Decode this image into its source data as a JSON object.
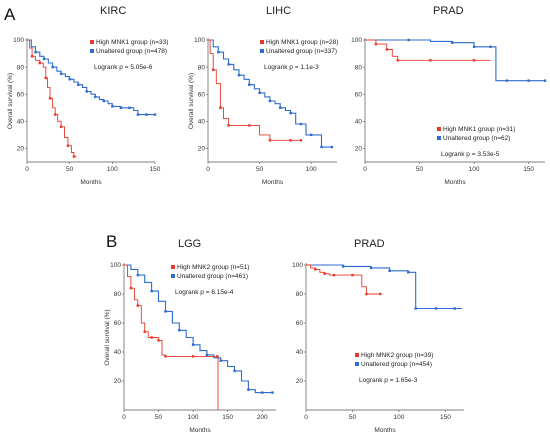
{
  "panel_labels": [
    "A",
    "B"
  ],
  "legend": {
    "high_mnk1": "High MNK1 group",
    "high_mnk2": "High MNK2 group",
    "unaltered": "Unaltered group"
  },
  "colors": {
    "high": "#e8382a",
    "unaltered": "#2d6bd0",
    "unaltered_tail": "#7fb1e6"
  },
  "chart_data": [
    {
      "type": "line",
      "title": "KIRC",
      "xlabel": "Months",
      "ylabel": "Overall survival  (%)",
      "xlim": [
        0,
        150
      ],
      "ylim": [
        10,
        100
      ],
      "xticks": [
        0,
        50,
        100,
        150
      ],
      "yticks": [
        20,
        40,
        60,
        80,
        100
      ],
      "legend_position": "top-right",
      "logrank": "Logrank  p = 5.05e-6",
      "series": [
        {
          "name": "High MNK1 group (n=33)",
          "group": "high",
          "x": [
            0,
            3,
            6,
            10,
            15,
            19,
            22,
            24,
            27,
            30,
            33,
            36,
            40,
            44,
            48,
            52,
            55,
            58
          ],
          "y": [
            100,
            94,
            88,
            85,
            83,
            80,
            72,
            65,
            57,
            50,
            45,
            40,
            36,
            28,
            22,
            17,
            14,
            14
          ]
        },
        {
          "name": "Unaltered group (n=478)",
          "group": "unaltered",
          "x": [
            0,
            5,
            10,
            15,
            20,
            25,
            30,
            35,
            40,
            45,
            50,
            55,
            60,
            65,
            70,
            75,
            80,
            85,
            90,
            95,
            100,
            105,
            110,
            115,
            120,
            125,
            130,
            135,
            140,
            145,
            150
          ],
          "y": [
            100,
            95,
            91,
            88,
            86,
            83,
            80,
            77,
            75,
            73,
            71,
            69,
            67,
            65,
            62,
            60,
            58,
            56,
            55,
            53,
            51,
            51,
            50,
            50,
            50,
            48,
            45,
            45,
            45,
            45,
            45
          ]
        }
      ]
    },
    {
      "type": "line",
      "title": "LIHC",
      "xlabel": "Months",
      "ylabel": "Overall survival  (%)",
      "xlim": [
        0,
        125
      ],
      "ylim": [
        10,
        100
      ],
      "xticks": [
        0,
        50,
        100
      ],
      "yticks": [
        20,
        40,
        60,
        80,
        100
      ],
      "legend_position": "top-right",
      "logrank": "Logrank  p = 1.1e-3",
      "series": [
        {
          "name": "High MNK1 group (n=28)",
          "group": "high",
          "x": [
            0,
            2,
            5,
            8,
            12,
            15,
            20,
            30,
            40,
            50,
            60,
            70,
            80,
            85,
            90
          ],
          "y": [
            100,
            90,
            78,
            68,
            50,
            42,
            37,
            37,
            37,
            30,
            26,
            26,
            26,
            26,
            26
          ]
        },
        {
          "name": "Unaltered group (n=337)",
          "group": "unaltered",
          "x": [
            0,
            5,
            10,
            15,
            20,
            25,
            30,
            35,
            40,
            45,
            50,
            55,
            60,
            65,
            70,
            75,
            80,
            85,
            90,
            95,
            100,
            105,
            110,
            115,
            120
          ],
          "y": [
            100,
            95,
            91,
            86,
            82,
            78,
            74,
            71,
            67,
            64,
            61,
            58,
            55,
            53,
            50,
            48,
            46,
            38,
            38,
            30,
            30,
            30,
            21,
            21,
            21
          ]
        }
      ]
    },
    {
      "type": "line",
      "title": "PRAD",
      "xlabel": "Months",
      "ylabel": "",
      "xlim": [
        0,
        165
      ],
      "ylim": [
        10,
        100
      ],
      "xticks": [
        0,
        50,
        100,
        150
      ],
      "yticks": [
        20,
        40,
        60,
        80,
        100
      ],
      "legend_position": "bottom-right",
      "logrank": "Logrank  p = 3.53e-5",
      "series": [
        {
          "name": "High MNK1 group (n=31)",
          "group": "high",
          "x": [
            0,
            5,
            10,
            15,
            20,
            25,
            30,
            40,
            60,
            80,
            100,
            115
          ],
          "y": [
            100,
            100,
            97,
            97,
            93,
            88,
            85,
            85,
            85,
            85,
            85,
            85
          ]
        },
        {
          "name": "Unaltered group (n=62)",
          "group": "unaltered",
          "x": [
            0,
            20,
            40,
            60,
            80,
            90,
            100,
            110,
            115,
            120,
            130,
            140,
            150,
            160,
            165
          ],
          "y": [
            100,
            100,
            100,
            99,
            98,
            98,
            95,
            95,
            95,
            70,
            70,
            70,
            70,
            70,
            70
          ]
        }
      ]
    },
    {
      "type": "line",
      "title": "LGG",
      "xlabel": "Months",
      "ylabel": "Overall survival  (%)",
      "xlim": [
        0,
        220
      ],
      "ylim": [
        0,
        100
      ],
      "xticks": [
        0,
        50,
        100,
        150,
        200
      ],
      "yticks": [
        20,
        40,
        60,
        80,
        100
      ],
      "legend_position": "top-right",
      "logrank": "Logrank  p = 6.15e-4",
      "series": [
        {
          "name": "High MNK2 group (n=51)",
          "group": "high",
          "x": [
            0,
            5,
            10,
            15,
            20,
            25,
            30,
            35,
            40,
            45,
            50,
            55,
            60,
            80,
            100,
            120,
            135,
            136
          ],
          "y": [
            100,
            92,
            84,
            76,
            72,
            60,
            54,
            50,
            50,
            50,
            48,
            38,
            37,
            37,
            37,
            37,
            37,
            0
          ]
        },
        {
          "name": "Unaltered group (n=461)",
          "group": "unaltered",
          "x": [
            0,
            10,
            20,
            30,
            40,
            50,
            60,
            70,
            80,
            90,
            100,
            110,
            120,
            130,
            140,
            150,
            160,
            170,
            180,
            190,
            200,
            210,
            215
          ],
          "y": [
            100,
            97,
            93,
            88,
            82,
            75,
            68,
            60,
            55,
            50,
            45,
            41,
            38,
            36,
            34,
            30,
            27,
            20,
            14,
            12,
            12,
            12,
            12
          ]
        }
      ]
    },
    {
      "type": "line",
      "title": "PRAD",
      "xlabel": "Months",
      "ylabel": "",
      "xlim": [
        0,
        170
      ],
      "ylim": [
        0,
        100
      ],
      "xticks": [
        0,
        50,
        100,
        150
      ],
      "yticks": [
        20,
        40,
        60,
        80,
        100
      ],
      "legend_position": "bottom-right",
      "logrank": "Logrank  p = 1.65e-3",
      "series": [
        {
          "name": "High MNK2 group (n=39)",
          "group": "high",
          "x": [
            0,
            5,
            10,
            15,
            20,
            25,
            30,
            40,
            50,
            60,
            65,
            70,
            80
          ],
          "y": [
            100,
            98,
            97,
            95,
            94,
            93,
            93,
            93,
            93,
            85,
            80,
            80,
            80
          ]
        },
        {
          "name": "Unaltered group (n=454)",
          "group": "unaltered",
          "x": [
            0,
            20,
            40,
            60,
            70,
            80,
            90,
            100,
            110,
            114,
            118,
            130,
            140,
            150,
            160,
            168
          ],
          "y": [
            100,
            100,
            99,
            99,
            98,
            98,
            96,
            96,
            95,
            95,
            70,
            70,
            70,
            70,
            70,
            70
          ]
        }
      ]
    }
  ]
}
